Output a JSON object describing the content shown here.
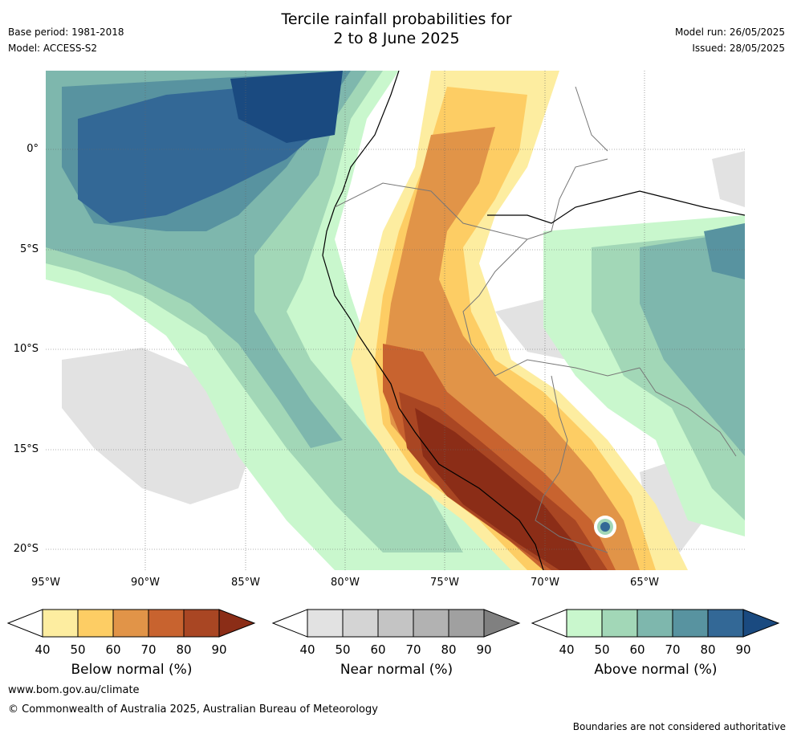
{
  "header": {
    "title_line1": "Tercile rainfall probabilities for",
    "title_line2": "2 to 8 June 2025",
    "base_period": "Base period: 1981-2018",
    "model": "Model: ACCESS-S2",
    "model_run": "Model run: 26/05/2025",
    "issued": "Issued: 28/05/2025"
  },
  "map": {
    "lat_labels": [
      "0°",
      "5°S",
      "10°S",
      "15°S",
      "20°S"
    ],
    "lon_labels": [
      "95°W",
      "90°W",
      "85°W",
      "80°W",
      "75°W",
      "70°W",
      "65°W"
    ]
  },
  "legends": [
    {
      "title": "Below normal (%)",
      "ticks": [
        "40",
        "50",
        "60",
        "70",
        "80",
        "90"
      ],
      "colors": [
        "#ffffff",
        "#fdeda0",
        "#fdcd64",
        "#e19448",
        "#c8632f",
        "#a94623",
        "#8b2d17"
      ]
    },
    {
      "title": "Near normal (%)",
      "ticks": [
        "40",
        "50",
        "60",
        "70",
        "80",
        "90"
      ],
      "colors": [
        "#ffffff",
        "#e2e2e2",
        "#d4d4d4",
        "#c4c4c4",
        "#b2b2b2",
        "#a0a0a0",
        "#808080"
      ]
    },
    {
      "title": "Above normal (%)",
      "ticks": [
        "40",
        "50",
        "60",
        "70",
        "80",
        "90"
      ],
      "colors": [
        "#ffffff",
        "#c9f7cd",
        "#a2d7b7",
        "#7eb7ad",
        "#5893a0",
        "#336896",
        "#1a4a80"
      ]
    }
  ],
  "footer": {
    "website": "www.bom.gov.au/climate",
    "copyright": "© Commonwealth of Australia 2025, Australian Bureau of Meteorology",
    "note": "Boundaries are not considered authoritative"
  }
}
